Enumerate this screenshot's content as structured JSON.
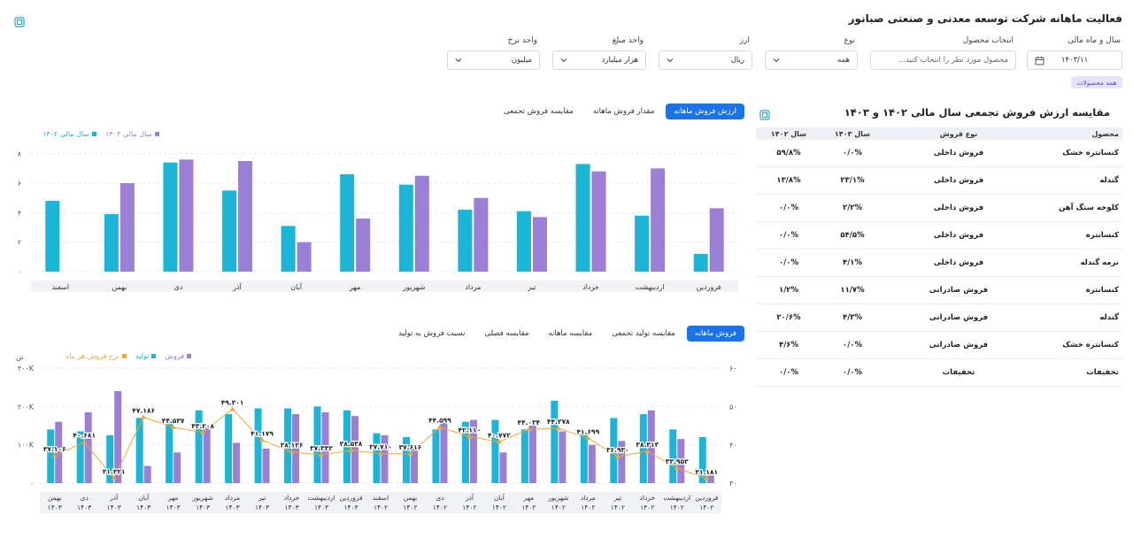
{
  "header": {
    "title": "فعالیت ماهانه شرکت توسعه معدنی و صنعتی صبانور"
  },
  "filters": {
    "year_month": {
      "label": "سال و ماه مالی",
      "value": "۱۴۰۳/۱۱"
    },
    "product": {
      "label": "انتخاب محصول",
      "placeholder": "محصول مورد نظر را انتخاب کنید..."
    },
    "type": {
      "label": "نوع",
      "value": "همه"
    },
    "currency": {
      "label": "ارز",
      "value": "ریال"
    },
    "amount_unit": {
      "label": "واحد مبلغ",
      "value": "هزار میلیارد"
    },
    "rate_unit": {
      "label": "واحد نرخ",
      "value": "میلیون"
    },
    "all_products_chip": "همه محصولات"
  },
  "colors": {
    "accent": "#1a73e8",
    "cyan": "#1cb5d8",
    "purple": "#9b7ed6",
    "orange": "#f0a830"
  },
  "top_chart": {
    "tabs": [
      "ارزش فروش ماهانه",
      "مقدار فروش ماهانه",
      "مقایسه فروش تجمعی"
    ],
    "active_tab": 0,
    "legend_1403": "سال مالی ۱۴۰۳",
    "legend_1402": "سال مالی ۱۴۰۲"
  },
  "table": {
    "title": "مقایسه ارزش فروش تجمعی سال مالی ۱۴۰۲ و ۱۴۰۳",
    "headers": [
      "محصول",
      "نوع فروش",
      "سال ۱۴۰۳",
      "سال ۱۴۰۲"
    ],
    "rows": [
      [
        "کنسانتره خشک",
        "فروش داخلی",
        "۰/۰%",
        "۵۹/۸%"
      ],
      [
        "گندله",
        "فروش داخلی",
        "۲۳/۱%",
        "۱۳/۸%"
      ],
      [
        "کلوخه سنگ آهن",
        "فروش داخلی",
        "۲/۲%",
        "۰/۰%"
      ],
      [
        "کنسانتره",
        "فروش داخلی",
        "۵۴/۵%",
        "۰/۰%"
      ],
      [
        "نرمه گندله",
        "فروش داخلی",
        "۴/۱%",
        "۰/۰%"
      ],
      [
        "کنسانتره",
        "فروش صادراتی",
        "۱۱/۷%",
        "۱/۲%"
      ],
      [
        "گندله",
        "فروش صادراتی",
        "۴/۳%",
        "۲۰/۶%"
      ],
      [
        "کنسانتره خشک",
        "فروش صادراتی",
        "۰/۰%",
        "۴/۶%"
      ],
      [
        "تخفیفات",
        "تخفیفات",
        "۰/۰%",
        "۰/۰%"
      ]
    ]
  },
  "bottom_chart": {
    "tabs": [
      "فروش ماهانه",
      "مقایسه تولید تجمعی",
      "مقایسه ماهانه",
      "مقایسه فصلی",
      "نسبت فروش به تولید"
    ],
    "active_tab": 0,
    "legend_sales": "فروش",
    "legend_production": "تولید",
    "legend_rate": "نرخ فروش هر ماه",
    "left_unit": "تن"
  },
  "chart_data": [
    {
      "type": "bar",
      "categories": [
        "فروردین",
        "اردیبهشت",
        "خرداد",
        "تیر",
        "مرداد",
        "شهریور",
        "مهر",
        "آبان",
        "آذر",
        "دی",
        "بهمن",
        "اسفند"
      ],
      "series": [
        {
          "name": "سال مالی ۱۴۰۲",
          "values": [
            1.2,
            3.8,
            7.3,
            4.1,
            4.2,
            5.9,
            6.6,
            3.1,
            5.5,
            7.4,
            3.9,
            4.8
          ]
        },
        {
          "name": "سال مالی ۱۴۰۳",
          "values": [
            4.3,
            7.0,
            6.8,
            3.7,
            5.0,
            6.5,
            3.6,
            2.0,
            7.5,
            7.6,
            6.0,
            null
          ]
        }
      ],
      "y_ticks": [
        "۰",
        "۲",
        "۴",
        "۶",
        "۸"
      ],
      "ylim": [
        0,
        8.4
      ]
    },
    {
      "type": "bar",
      "categories": [
        [
          "فروردین",
          "۱۴۰۲"
        ],
        [
          "اردیبهشت",
          "۱۴۰۲"
        ],
        [
          "خرداد",
          "۱۴۰۲"
        ],
        [
          "تیر",
          "۱۴۰۲"
        ],
        [
          "مرداد",
          "۱۴۰۲"
        ],
        [
          "شهریور",
          "۱۴۰۲"
        ],
        [
          "مهر",
          "۱۴۰۲"
        ],
        [
          "آبان",
          "۱۴۰۲"
        ],
        [
          "آذر",
          "۱۴۰۲"
        ],
        [
          "دی",
          "۱۴۰۲"
        ],
        [
          "بهمن",
          "۱۴۰۲"
        ],
        [
          "اسفند",
          "۱۴۰۲"
        ],
        [
          "فروردین",
          "۱۴۰۳"
        ],
        [
          "اردیبهشت",
          "۱۴۰۳"
        ],
        [
          "خرداد",
          "۱۴۰۳"
        ],
        [
          "تیر",
          "۱۴۰۳"
        ],
        [
          "مرداد",
          "۱۴۰۳"
        ],
        [
          "شهریور",
          "۱۴۰۳"
        ],
        [
          "مهر",
          "۱۴۰۳"
        ],
        [
          "آبان",
          "۱۴۰۳"
        ],
        [
          "آذر",
          "۱۴۰۳"
        ],
        [
          "دی",
          "۱۴۰۳"
        ],
        [
          "بهمن",
          "۱۴۰۳"
        ]
      ],
      "series": [
        {
          "name": "تولید",
          "values": [
            120000,
            140000,
            180000,
            170000,
            135000,
            215000,
            140000,
            165000,
            160000,
            140000,
            120000,
            130000,
            190000,
            200000,
            195000,
            195000,
            180000,
            190000,
            165000,
            170000,
            125000,
            135000,
            140000
          ]
        },
        {
          "name": "فروش",
          "values": [
            30000,
            115000,
            190000,
            110000,
            100000,
            135000,
            150000,
            80000,
            165000,
            165000,
            100000,
            125000,
            175000,
            185000,
            180000,
            90000,
            105000,
            145000,
            80000,
            45000,
            240000,
            185000,
            160000
          ]
        },
        {
          "name": "نرخ فروش هر ماه",
          "values": [
            31.181,
            33.952,
            38.313,
            36.93,
            41.699,
            44.278,
            44.034,
            40.772,
            42.11,
            44.599,
            37.616,
            37.71,
            38.538,
            37.332,
            38.136,
            41.179,
            49.301,
            43.208,
            44.537,
            47.186,
            31.321,
            40.681,
            37.106
          ]
        }
      ],
      "data_labels": [
        "۳۱.۱۸۱",
        "۳۳.۹۵۲",
        "۳۸.۳۱۳",
        "۳۶.۹۳۰",
        "۴۱.۶۹۹",
        "۴۴.۲۷۸",
        "۴۴.۰۳۴",
        "۴۰.۷۷۲",
        "۴۲.۱۱۰",
        "۴۴.۵۹۹",
        "۳۷.۶۱۶",
        "۳۷.۷۱۰",
        "۳۸.۵۳۸",
        "۳۷.۳۳۲",
        "۳۸.۱۳۶",
        "۴۱.۱۷۹",
        "۴۹.۳۰۱",
        "۴۳.۲۰۸",
        "۴۴.۵۳۷",
        "۴۷.۱۸۶",
        "۳۱.۳۲۱",
        "۴۰.۶۸۱",
        "۳۷.۱۰۶"
      ],
      "y_left_ticks": [
        "۰",
        "۱۰۰K",
        "۲۰۰K",
        "۳۰۰K"
      ],
      "ylim_left": [
        0,
        300000
      ],
      "y_right_ticks": [
        "۳۰",
        "۴۰",
        "۵۰",
        "۶۰"
      ],
      "ylim_right": [
        30,
        60
      ]
    }
  ]
}
